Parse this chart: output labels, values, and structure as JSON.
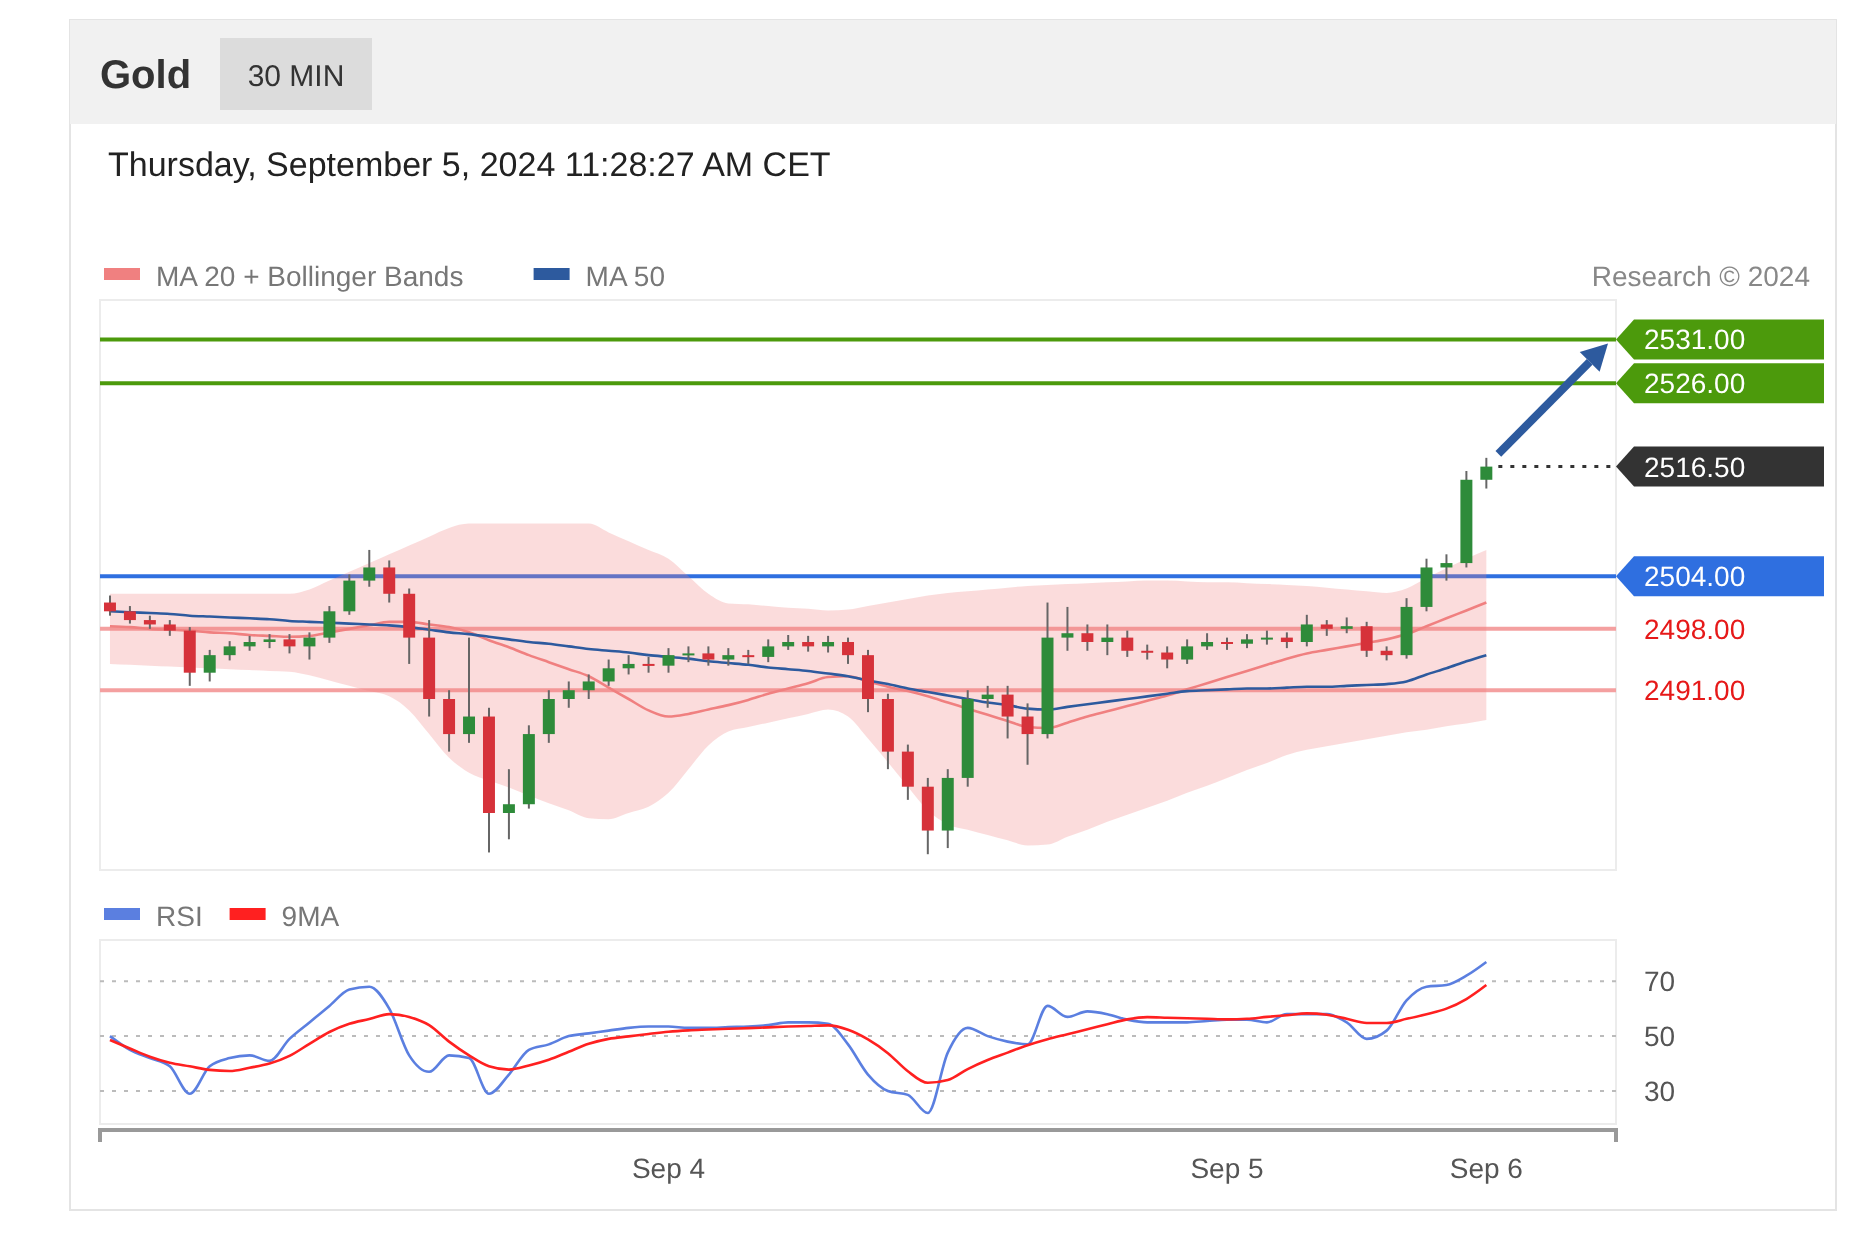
{
  "chart_data": [
    {
      "type": "candlestick",
      "title": "Gold",
      "subtitle": "Thursday, September 5, 2024 11:28:27 AM CET",
      "annotations": [
        "30 MIN",
        "Research © 2024"
      ],
      "ylim": [
        2470.5,
        2535.5
      ],
      "tick_labels": false,
      "legend": "top left",
      "ref_lines": [
        {
          "axis": "y",
          "value": 2531,
          "label": "2531.00",
          "color": "#4c9a0c"
        },
        {
          "axis": "y",
          "value": 2526,
          "label": "2526.00",
          "color": "#4c9a0c"
        },
        {
          "axis": "y",
          "value": 2516.5,
          "label": "2516.50",
          "color": "#333333",
          "line_style": "dotted"
        },
        {
          "axis": "y",
          "value": 2504,
          "label": "2504.00",
          "color": "#2f6fe0"
        },
        {
          "axis": "y",
          "value": 2498,
          "label": "2498.00",
          "color": "#f4a0a0"
        },
        {
          "axis": "y",
          "value": 2491,
          "label": "2491.00",
          "color": "#f4a0a0"
        }
      ],
      "series": [
        {
          "type": "line",
          "name": "MA 20 + Bollinger Bands",
          "color": "#f08080",
          "values": [
            2498.3,
            2498.2,
            2498,
            2497.9,
            2497.8,
            2497.6,
            2497.5,
            2497.3,
            2497.2,
            2497.1,
            2497.2,
            2497.6,
            2498,
            2498.4,
            2498.8,
            2498.8,
            2498.5,
            2498.2,
            2497.6,
            2496.7,
            2495.9,
            2495,
            2494.2,
            2493.4,
            2492.6,
            2491.3,
            2490,
            2488.7,
            2488,
            2488.3,
            2488.8,
            2489.3,
            2489.9,
            2490.6,
            2491.2,
            2491.8,
            2492.5,
            2492.6,
            2492,
            2491.4,
            2490.9,
            2490.3,
            2489.6,
            2488.9,
            2488.2,
            2487.5,
            2486.8,
            2486.7,
            2487.3,
            2488,
            2488.6,
            2489.2,
            2489.8,
            2490.4,
            2491.1,
            2491.8,
            2492.5,
            2493.2,
            2493.9,
            2494.6,
            2495.2,
            2495.6,
            2496,
            2496.4,
            2496.8,
            2497.4,
            2498.3,
            2499.2,
            2500.1,
            2501
          ],
          "lower": [
            2494,
            2493.9,
            2493.8,
            2493.7,
            2493.6,
            2493.5,
            2493.4,
            2493.3,
            2493.2,
            2493.1,
            2492.7,
            2492.1,
            2491.5,
            2490.9,
            2490.3,
            2488.7,
            2486,
            2483.3,
            2481.6,
            2480.7,
            2479.9,
            2479,
            2478.1,
            2477.3,
            2476.4,
            2476.3,
            2477,
            2477.7,
            2479.3,
            2482,
            2484.7,
            2486.3,
            2486.8,
            2487.3,
            2487.8,
            2488.3,
            2488.8,
            2488,
            2485.5,
            2482.8,
            2480,
            2477.3,
            2475.7,
            2475.1,
            2474.5,
            2473.9,
            2473.3,
            2473.4,
            2474.3,
            2475.1,
            2476,
            2476.8,
            2477.6,
            2478.4,
            2479.3,
            2480.1,
            2481,
            2481.9,
            2482.7,
            2483.6,
            2484.2,
            2484.6,
            2485,
            2485.4,
            2485.8,
            2486.2,
            2486.5,
            2486.9,
            2487.2,
            2487.6
          ],
          "upper": [
            2502,
            2502,
            2502,
            2502,
            2502,
            2502,
            2502,
            2502,
            2502,
            2502,
            2502.5,
            2503.5,
            2504.5,
            2505.5,
            2506.5,
            2507.5,
            2508.5,
            2509.5,
            2510,
            2510,
            2510,
            2510,
            2510,
            2510,
            2510,
            2509,
            2508,
            2507,
            2506,
            2504,
            2502,
            2500.9,
            2500.8,
            2500.6,
            2500.4,
            2500.3,
            2500.1,
            2500.2,
            2500.6,
            2501,
            2501.4,
            2501.8,
            2502.1,
            2502.3,
            2502.5,
            2502.7,
            2502.9,
            2503,
            2503.1,
            2503.2,
            2503.3,
            2503.4,
            2503.5,
            2503.5,
            2503.4,
            2503.3,
            2503.3,
            2503.2,
            2503.1,
            2503,
            2502.9,
            2502.7,
            2502.5,
            2502.3,
            2502.1,
            2502.6,
            2503.8,
            2504.9,
            2506,
            2507
          ]
        },
        {
          "type": "line",
          "name": "MA 50",
          "color": "#2d5a9e",
          "values": [
            2500,
            2499.9,
            2499.8,
            2499.7,
            2499.5,
            2499.4,
            2499.3,
            2499.2,
            2499.1,
            2498.9,
            2498.8,
            2498.7,
            2498.6,
            2498.5,
            2498.4,
            2498.2,
            2497.9,
            2497.6,
            2497.4,
            2497.1,
            2496.8,
            2496.5,
            2496.3,
            2496,
            2495.7,
            2495.5,
            2495.3,
            2495,
            2494.8,
            2494.6,
            2494.3,
            2494.1,
            2493.9,
            2493.6,
            2493.4,
            2493.2,
            2492.9,
            2492.6,
            2492.1,
            2491.7,
            2491.2,
            2490.8,
            2490.4,
            2490,
            2489.6,
            2489.3,
            2488.9,
            2488.8,
            2489.1,
            2489.4,
            2489.7,
            2490,
            2490.3,
            2490.6,
            2490.9,
            2491,
            2491.1,
            2491.2,
            2491.2,
            2491.3,
            2491.4,
            2491.4,
            2491.5,
            2491.6,
            2491.7,
            2492,
            2492.8,
            2493.5,
            2494.3,
            2495
          ]
        },
        {
          "colors": [
            "#d6323a",
            "#d6323a",
            "#d6323a",
            "#d6323a",
            "#d6323a",
            "#2e8b3a",
            "#2e8b3a",
            "#2e8b3a",
            "#2e8b3a",
            "#d6323a",
            "#2e8b3a",
            "#2e8b3a",
            "#2e8b3a",
            "#2e8b3a",
            "#d6323a",
            "#d6323a",
            "#d6323a",
            "#d6323a",
            "#2e8b3a",
            "#d6323a",
            "#2e8b3a",
            "#2e8b3a",
            "#2e8b3a",
            "#2e8b3a",
            "#2e8b3a",
            "#2e8b3a",
            "#2e8b3a",
            "#d6323a",
            "#2e8b3a",
            "#2e8b3a",
            "#d6323a",
            "#2e8b3a",
            "#d6323a",
            "#2e8b3a",
            "#2e8b3a",
            "#d6323a",
            "#2e8b3a",
            "#d6323a",
            "#d6323a",
            "#d6323a",
            "#d6323a",
            "#d6323a",
            "#2e8b3a",
            "#2e8b3a",
            "#2e8b3a",
            "#d6323a",
            "#d6323a",
            "#2e8b3a",
            "#2e8b3a",
            "#d6323a",
            "#2e8b3a",
            "#d6323a",
            "#d6323a",
            "#d6323a",
            "#2e8b3a",
            "#2e8b3a",
            "#d6323a",
            "#2e8b3a",
            "#2e8b3a",
            "#d6323a",
            "#2e8b3a",
            "#d6323a",
            "#2e8b3a",
            "#d6323a",
            "#d6323a",
            "#2e8b3a",
            "#2e8b3a",
            "#2e8b3a",
            "#2e8b3a",
            "#2e8b3a"
          ],
          "ohlc": [
            [
              2501,
              2501.8,
              2499.5,
              2500
            ],
            [
              2500,
              2500.6,
              2498.6,
              2499
            ],
            [
              2499,
              2499.5,
              2498,
              2498.5
            ],
            [
              2498.5,
              2499,
              2497.2,
              2497.8
            ],
            [
              2497.8,
              2498.2,
              2491.5,
              2493
            ],
            [
              2493,
              2495.6,
              2492,
              2495
            ],
            [
              2495,
              2496.6,
              2494.4,
              2496
            ],
            [
              2496,
              2497.2,
              2495.5,
              2496.5
            ],
            [
              2496.5,
              2497.4,
              2495.8,
              2496.8
            ],
            [
              2496.8,
              2497.4,
              2495.2,
              2496
            ],
            [
              2496,
              2497.6,
              2494.5,
              2497
            ],
            [
              2497,
              2500.6,
              2496.4,
              2500
            ],
            [
              2500,
              2504.2,
              2499.6,
              2503.5
            ],
            [
              2503.5,
              2507,
              2502.8,
              2505
            ],
            [
              2505,
              2505.8,
              2501,
              2502
            ],
            [
              2502,
              2502.6,
              2494,
              2497
            ],
            [
              2497,
              2499,
              2488,
              2490
            ],
            [
              2490,
              2491,
              2484,
              2486
            ],
            [
              2486,
              2497,
              2485,
              2488
            ],
            [
              2488,
              2489,
              2472.5,
              2477
            ],
            [
              2477,
              2482,
              2474,
              2478
            ],
            [
              2478,
              2487,
              2477.5,
              2486
            ],
            [
              2486,
              2491,
              2485,
              2490
            ],
            [
              2490,
              2492,
              2489,
              2491
            ],
            [
              2491,
              2492.8,
              2490,
              2492
            ],
            [
              2492,
              2494.5,
              2491.5,
              2493.5
            ],
            [
              2493.5,
              2495,
              2492.8,
              2494
            ],
            [
              2494,
              2494.8,
              2493,
              2493.8
            ],
            [
              2493.8,
              2495.8,
              2493,
              2495
            ],
            [
              2495,
              2496,
              2494.2,
              2495.2
            ],
            [
              2495.2,
              2496,
              2493.8,
              2494.5
            ],
            [
              2494.5,
              2495.8,
              2493.8,
              2495
            ],
            [
              2495,
              2495.6,
              2494,
              2494.8
            ],
            [
              2494.8,
              2496.8,
              2494.2,
              2496
            ],
            [
              2496,
              2497.3,
              2495.6,
              2496.5
            ],
            [
              2496.5,
              2497.2,
              2495.4,
              2496
            ],
            [
              2496,
              2497.2,
              2495.3,
              2496.5
            ],
            [
              2496.5,
              2497,
              2494,
              2495
            ],
            [
              2495,
              2495.6,
              2488.5,
              2490
            ],
            [
              2490,
              2490.6,
              2482,
              2484
            ],
            [
              2484,
              2484.8,
              2478.5,
              2480
            ],
            [
              2480,
              2481,
              2472.3,
              2475
            ],
            [
              2475,
              2482,
              2473,
              2481
            ],
            [
              2481,
              2491,
              2480,
              2490
            ],
            [
              2490,
              2491.5,
              2489,
              2490.5
            ],
            [
              2490.5,
              2491.5,
              2485.5,
              2488
            ],
            [
              2488,
              2489.5,
              2482.5,
              2486
            ],
            [
              2486,
              2501,
              2485.5,
              2497
            ],
            [
              2497,
              2500.5,
              2495.5,
              2497.5
            ],
            [
              2497.5,
              2498.5,
              2495.5,
              2496.5
            ],
            [
              2496.5,
              2498.5,
              2495,
              2497
            ],
            [
              2497,
              2497.8,
              2494.8,
              2495.5
            ],
            [
              2495.5,
              2496.2,
              2494.5,
              2495.3
            ],
            [
              2495.3,
              2496,
              2493.5,
              2494.5
            ],
            [
              2494.5,
              2496.8,
              2494,
              2496
            ],
            [
              2496,
              2497.5,
              2495.6,
              2496.5
            ],
            [
              2496.5,
              2497,
              2495.6,
              2496.3
            ],
            [
              2496.3,
              2497.4,
              2495.8,
              2496.8
            ],
            [
              2496.8,
              2497.8,
              2496.2,
              2497
            ],
            [
              2497,
              2497.6,
              2495.8,
              2496.5
            ],
            [
              2496.5,
              2499.6,
              2496,
              2498.5
            ],
            [
              2498.5,
              2499,
              2497.2,
              2498
            ],
            [
              2498,
              2499.3,
              2497.5,
              2498.3
            ],
            [
              2498.3,
              2498.8,
              2494.8,
              2495.5
            ],
            [
              2495.5,
              2496,
              2494.4,
              2495
            ],
            [
              2495,
              2501.5,
              2494.6,
              2500.5
            ],
            [
              2500.5,
              2506,
              2500,
              2505
            ],
            [
              2505,
              2506.5,
              2503.5,
              2505.5
            ],
            [
              2505.5,
              2516,
              2505,
              2515
            ],
            [
              2515,
              2517.5,
              2514,
              2516.5
            ]
          ]
        }
      ]
    },
    {
      "type": "line",
      "ylim": [
        18,
        85
      ],
      "yticks": [
        30,
        50,
        70
      ],
      "grid": "y",
      "legend": "top left",
      "categories": [
        null,
        null,
        null,
        null,
        null,
        null,
        null,
        null,
        null,
        null,
        null,
        null,
        null,
        null,
        null,
        null,
        null,
        null,
        null,
        null,
        null,
        null,
        null,
        null,
        null,
        null,
        null,
        null,
        "Sep 4",
        null,
        null,
        null,
        null,
        null,
        null,
        null,
        null,
        null,
        null,
        null,
        null,
        null,
        null,
        null,
        null,
        null,
        null,
        null,
        null,
        null,
        null,
        null,
        null,
        null,
        null,
        null,
        "Sep 5",
        null,
        null,
        null,
        null,
        null,
        null,
        null,
        null,
        null,
        null,
        null,
        null,
        "Sep 6"
      ],
      "series": [
        {
          "name": "RSI",
          "color": "#5b7fe0",
          "values": [
            50,
            45,
            42,
            39,
            29,
            39,
            42,
            43,
            41,
            49,
            55,
            61,
            67,
            68,
            60,
            43,
            37,
            43,
            42,
            29,
            36,
            45,
            47,
            50,
            51,
            52,
            53,
            53.5,
            53.5,
            53,
            53,
            53.3,
            53.5,
            54,
            55,
            55,
            54.5,
            47,
            36,
            30,
            28.6,
            22,
            44,
            53,
            50,
            48,
            47,
            61,
            57,
            59,
            58,
            56,
            55,
            55,
            55,
            55.5,
            56,
            56,
            55,
            58,
            58,
            58,
            55,
            49,
            52,
            63,
            68,
            68.6,
            72,
            77
          ]
        },
        {
          "name": "9MA",
          "color": "#ff2020",
          "values": [
            48.6,
            45.5,
            42.5,
            40.3,
            39,
            37.7,
            37.3,
            38.5,
            40,
            42.8,
            47.2,
            51.5,
            54.5,
            56.2,
            58,
            57,
            54,
            48,
            43,
            39,
            37.8,
            39.3,
            41.4,
            44.3,
            47.2,
            49,
            49.9,
            50.8,
            51.6,
            52.1,
            52.4,
            52.7,
            52.9,
            53.2,
            53.5,
            53.7,
            53.9,
            52.3,
            48.8,
            43.8,
            37.2,
            33,
            34,
            38,
            41.3,
            44,
            46.7,
            48.9,
            50.7,
            52.5,
            54.3,
            56.1,
            56.9,
            56.7,
            56.5,
            56.3,
            56.1,
            56.3,
            57,
            57.6,
            58.3,
            57.8,
            56.3,
            54.8,
            54.8,
            56.3,
            58,
            60,
            63.5,
            68.6
          ]
        }
      ]
    }
  ]
}
